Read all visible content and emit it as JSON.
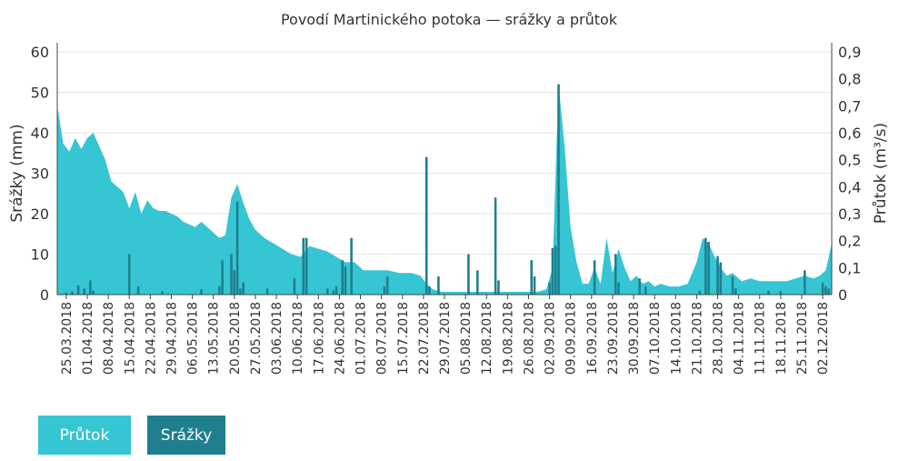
{
  "chart_data": {
    "type": "bar+area",
    "title": "Povodí Martinického potoka — srážky a průtok",
    "ylabel_left": "Srážky (mm)",
    "ylabel_right": "Průtok (m³/s)",
    "ylim_left": [
      0,
      60
    ],
    "ylim_right": [
      0,
      0.9
    ],
    "yticks_left": [
      "0",
      "10",
      "20",
      "30",
      "40",
      "50",
      "60"
    ],
    "yticks_right": [
      "0",
      "0,1",
      "0,2",
      "0,3",
      "0,4",
      "0,5",
      "0,6",
      "0,7",
      "0,8",
      "0,9"
    ],
    "x_start": "2018-03-22",
    "x_end": "2018-12-05",
    "grid": true,
    "legend_position": "bottom-left",
    "xtick_labels": [
      "25.03.2018",
      "01.04.2018",
      "08.04.2018",
      "15.04.2018",
      "22.04.2018",
      "29.04.2018",
      "06.05.2018",
      "13.05.2018",
      "20.05.2018",
      "27.05.2018",
      "03.06.2018",
      "10.06.2018",
      "17.06.2018",
      "24.06.2018",
      "01.07.2018",
      "08.07.2018",
      "15.07.2018",
      "22.07.2018",
      "29.07.2018",
      "05.08.2018",
      "12.08.2018",
      "19.08.2018",
      "26.08.2018",
      "02.09.2018",
      "09.09.2018",
      "16.09.2018",
      "23.09.2018",
      "30.09.2018",
      "07.10.2018",
      "14.10.2018",
      "21.10.2018",
      "28.10.2018",
      "04.11.2018",
      "11.11.2018",
      "18.11.2018",
      "25.11.2018",
      "02.12.2018"
    ],
    "series": [
      {
        "name": "Průtok",
        "type": "area",
        "axis": "right",
        "color": "#36c5d3",
        "points": [
          [
            "2018-03-22",
            0.7
          ],
          [
            "2018-03-24",
            0.56
          ],
          [
            "2018-03-26",
            0.53
          ],
          [
            "2018-03-28",
            0.58
          ],
          [
            "2018-03-30",
            0.54
          ],
          [
            "2018-04-01",
            0.58
          ],
          [
            "2018-04-03",
            0.6
          ],
          [
            "2018-04-05",
            0.55
          ],
          [
            "2018-04-07",
            0.5
          ],
          [
            "2018-04-09",
            0.42
          ],
          [
            "2018-04-11",
            0.4
          ],
          [
            "2018-04-13",
            0.38
          ],
          [
            "2018-04-15",
            0.32
          ],
          [
            "2018-04-17",
            0.38
          ],
          [
            "2018-04-19",
            0.3
          ],
          [
            "2018-04-21",
            0.35
          ],
          [
            "2018-04-23",
            0.32
          ],
          [
            "2018-04-25",
            0.31
          ],
          [
            "2018-04-27",
            0.31
          ],
          [
            "2018-04-29",
            0.3
          ],
          [
            "2018-05-01",
            0.29
          ],
          [
            "2018-05-03",
            0.27
          ],
          [
            "2018-05-05",
            0.26
          ],
          [
            "2018-05-07",
            0.25
          ],
          [
            "2018-05-09",
            0.27
          ],
          [
            "2018-05-11",
            0.25
          ],
          [
            "2018-05-13",
            0.23
          ],
          [
            "2018-05-15",
            0.21
          ],
          [
            "2018-05-17",
            0.22
          ],
          [
            "2018-05-19",
            0.36
          ],
          [
            "2018-05-21",
            0.41
          ],
          [
            "2018-05-23",
            0.34
          ],
          [
            "2018-05-25",
            0.28
          ],
          [
            "2018-05-27",
            0.24
          ],
          [
            "2018-05-30",
            0.21
          ],
          [
            "2018-06-02",
            0.19
          ],
          [
            "2018-06-05",
            0.17
          ],
          [
            "2018-06-08",
            0.15
          ],
          [
            "2018-06-11",
            0.14
          ],
          [
            "2018-06-14",
            0.18
          ],
          [
            "2018-06-17",
            0.17
          ],
          [
            "2018-06-20",
            0.16
          ],
          [
            "2018-06-23",
            0.14
          ],
          [
            "2018-06-26",
            0.12
          ],
          [
            "2018-06-29",
            0.12
          ],
          [
            "2018-07-02",
            0.09
          ],
          [
            "2018-07-06",
            0.09
          ],
          [
            "2018-07-10",
            0.09
          ],
          [
            "2018-07-14",
            0.08
          ],
          [
            "2018-07-18",
            0.08
          ],
          [
            "2018-07-21",
            0.07
          ],
          [
            "2018-07-23",
            0.04
          ],
          [
            "2018-07-25",
            0.02
          ],
          [
            "2018-07-28",
            0.01
          ],
          [
            "2018-08-01",
            0.01
          ],
          [
            "2018-08-05",
            0.01
          ],
          [
            "2018-08-09",
            0.01
          ],
          [
            "2018-08-13",
            0.01
          ],
          [
            "2018-08-17",
            0.01
          ],
          [
            "2018-08-21",
            0.01
          ],
          [
            "2018-08-25",
            0.01
          ],
          [
            "2018-08-29",
            0.01
          ],
          [
            "2018-09-01",
            0.02
          ],
          [
            "2018-09-03",
            0.1
          ],
          [
            "2018-09-05",
            0.78
          ],
          [
            "2018-09-07",
            0.55
          ],
          [
            "2018-09-09",
            0.25
          ],
          [
            "2018-09-11",
            0.12
          ],
          [
            "2018-09-13",
            0.04
          ],
          [
            "2018-09-15",
            0.04
          ],
          [
            "2018-09-17",
            0.1
          ],
          [
            "2018-09-19",
            0.04
          ],
          [
            "2018-09-21",
            0.21
          ],
          [
            "2018-09-23",
            0.08
          ],
          [
            "2018-09-25",
            0.17
          ],
          [
            "2018-09-27",
            0.1
          ],
          [
            "2018-09-29",
            0.05
          ],
          [
            "2018-10-01",
            0.07
          ],
          [
            "2018-10-03",
            0.04
          ],
          [
            "2018-10-05",
            0.05
          ],
          [
            "2018-10-07",
            0.03
          ],
          [
            "2018-10-09",
            0.04
          ],
          [
            "2018-10-12",
            0.03
          ],
          [
            "2018-10-15",
            0.03
          ],
          [
            "2018-10-18",
            0.04
          ],
          [
            "2018-10-21",
            0.12
          ],
          [
            "2018-10-23",
            0.21
          ],
          [
            "2018-10-25",
            0.19
          ],
          [
            "2018-10-27",
            0.14
          ],
          [
            "2018-10-29",
            0.1
          ],
          [
            "2018-10-31",
            0.07
          ],
          [
            "2018-11-02",
            0.08
          ],
          [
            "2018-11-05",
            0.05
          ],
          [
            "2018-11-08",
            0.06
          ],
          [
            "2018-11-11",
            0.05
          ],
          [
            "2018-11-14",
            0.05
          ],
          [
            "2018-11-17",
            0.05
          ],
          [
            "2018-11-20",
            0.05
          ],
          [
            "2018-11-23",
            0.06
          ],
          [
            "2018-11-26",
            0.07
          ],
          [
            "2018-11-29",
            0.06
          ],
          [
            "2018-12-01",
            0.07
          ],
          [
            "2018-12-03",
            0.09
          ],
          [
            "2018-12-05",
            0.19
          ]
        ]
      },
      {
        "name": "Srážky",
        "type": "bar",
        "axis": "left",
        "color": "#1f7f8e",
        "points": [
          [
            "2018-03-25",
            0.5
          ],
          [
            "2018-03-27",
            0.8
          ],
          [
            "2018-03-29",
            2.3
          ],
          [
            "2018-03-31",
            1.5
          ],
          [
            "2018-04-02",
            3.5
          ],
          [
            "2018-04-03",
            1.0
          ],
          [
            "2018-04-15",
            10
          ],
          [
            "2018-04-18",
            2
          ],
          [
            "2018-04-26",
            0.8
          ],
          [
            "2018-05-09",
            1.3
          ],
          [
            "2018-05-15",
            2
          ],
          [
            "2018-05-16",
            8.5
          ],
          [
            "2018-05-19",
            10
          ],
          [
            "2018-05-20",
            6
          ],
          [
            "2018-05-21",
            23
          ],
          [
            "2018-05-22",
            1.5
          ],
          [
            "2018-05-23",
            3
          ],
          [
            "2018-05-31",
            1.5
          ],
          [
            "2018-06-09",
            4
          ],
          [
            "2018-06-12",
            14
          ],
          [
            "2018-06-13",
            14
          ],
          [
            "2018-06-20",
            1.5
          ],
          [
            "2018-06-22",
            1
          ],
          [
            "2018-06-23",
            2
          ],
          [
            "2018-06-25",
            8.5
          ],
          [
            "2018-06-26",
            7
          ],
          [
            "2018-06-28",
            14
          ],
          [
            "2018-07-09",
            2
          ],
          [
            "2018-07-10",
            4.5
          ],
          [
            "2018-07-23",
            34
          ],
          [
            "2018-07-24",
            2
          ],
          [
            "2018-07-27",
            4.5
          ],
          [
            "2018-08-06",
            10
          ],
          [
            "2018-08-09",
            6
          ],
          [
            "2018-08-15",
            24
          ],
          [
            "2018-08-16",
            3.5
          ],
          [
            "2018-08-27",
            8.5
          ],
          [
            "2018-08-28",
            4.5
          ],
          [
            "2018-09-02",
            3
          ],
          [
            "2018-09-03",
            11.5
          ],
          [
            "2018-09-04",
            12
          ],
          [
            "2018-09-05",
            52
          ],
          [
            "2018-09-17",
            8.5
          ],
          [
            "2018-09-24",
            10
          ],
          [
            "2018-09-25",
            3
          ],
          [
            "2018-10-02",
            4
          ],
          [
            "2018-10-04",
            2
          ],
          [
            "2018-10-22",
            1
          ],
          [
            "2018-10-24",
            14
          ],
          [
            "2018-10-25",
            13
          ],
          [
            "2018-10-28",
            9.5
          ],
          [
            "2018-10-29",
            8
          ],
          [
            "2018-11-02",
            4.5
          ],
          [
            "2018-11-03",
            1.5
          ],
          [
            "2018-11-14",
            1
          ],
          [
            "2018-11-18",
            0.8
          ],
          [
            "2018-11-26",
            6
          ],
          [
            "2018-12-02",
            3
          ],
          [
            "2018-12-03",
            2
          ],
          [
            "2018-12-04",
            1.5
          ]
        ]
      }
    ]
  },
  "legend": {
    "items": [
      {
        "label": "Průtok",
        "color": "#36c5d3"
      },
      {
        "label": "Srážky",
        "color": "#1f7f8e"
      }
    ]
  }
}
